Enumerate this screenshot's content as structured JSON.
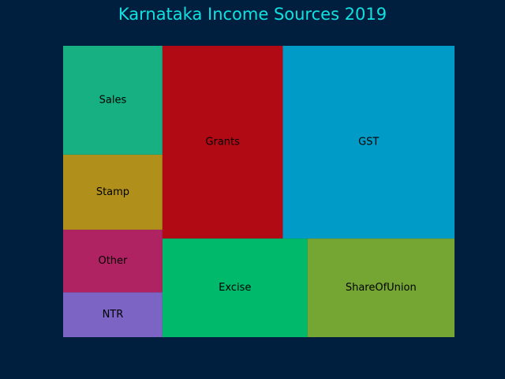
{
  "chart_data": {
    "type": "treemap",
    "title": "Karnataka Income Sources 2019",
    "items": [
      {
        "label": "Sales",
        "value": 8.87,
        "color": "#17b082"
      },
      {
        "label": "Stamp",
        "value": 6.11,
        "color": "#b0901a"
      },
      {
        "label": "Other",
        "value": 5.11,
        "color": "#b02363"
      },
      {
        "label": "NTR",
        "value": 3.64,
        "color": "#7b64c4"
      },
      {
        "label": "Grants",
        "value": 19.03,
        "color": "#b10a14"
      },
      {
        "label": "GST",
        "value": 27.13,
        "color": "#009bc6"
      },
      {
        "label": "Excise",
        "value": 11.72,
        "color": "#00b96b"
      },
      {
        "label": "ShareOfUnion",
        "value": 11.89,
        "color": "#75a634"
      }
    ]
  },
  "colors": {
    "background": "#001f3f",
    "title": "#11e0e0"
  }
}
